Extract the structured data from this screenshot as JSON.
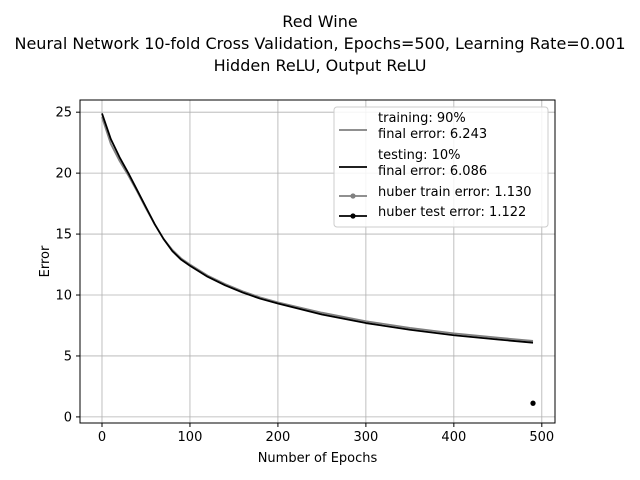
{
  "chart_data": {
    "type": "line",
    "title_lines": [
      "Red Wine",
      "Neural Network 10-fold Cross Validation, Epochs=500, Learning Rate=0.001",
      "Hidden ReLU, Output ReLU"
    ],
    "xlabel": "Number of Epochs",
    "ylabel": "Error",
    "xlim": [
      -25,
      515
    ],
    "ylim": [
      -0.5,
      26
    ],
    "xticks": [
      0,
      100,
      200,
      300,
      400,
      500
    ],
    "yticks": [
      0,
      5,
      10,
      15,
      20,
      25
    ],
    "grid": true,
    "legend_position": "top-right",
    "series": [
      {
        "name": "training: 90%\nfinal error: 6.243",
        "color": "#808080",
        "x": [
          0,
          10,
          20,
          30,
          40,
          50,
          60,
          70,
          80,
          90,
          100,
          120,
          140,
          160,
          180,
          200,
          250,
          300,
          350,
          400,
          450,
          490
        ],
        "y": [
          24.6,
          22.4,
          21.0,
          19.8,
          18.5,
          17.1,
          15.8,
          14.6,
          13.7,
          13.0,
          12.5,
          11.6,
          10.9,
          10.3,
          9.8,
          9.4,
          8.55,
          7.85,
          7.3,
          6.85,
          6.5,
          6.24
        ]
      },
      {
        "name": "testing: 10%\nfinal error: 6.086",
        "color": "#000000",
        "x": [
          0,
          10,
          20,
          30,
          40,
          50,
          60,
          70,
          80,
          90,
          100,
          120,
          140,
          160,
          180,
          200,
          250,
          300,
          350,
          400,
          450,
          490
        ],
        "y": [
          24.9,
          22.8,
          21.3,
          20.0,
          18.6,
          17.2,
          15.8,
          14.6,
          13.6,
          12.9,
          12.4,
          11.5,
          10.8,
          10.2,
          9.7,
          9.3,
          8.4,
          7.7,
          7.15,
          6.7,
          6.35,
          6.09
        ]
      },
      {
        "name": "huber train error: 1.130",
        "color": "#808080",
        "marker": "dot",
        "x": [
          490
        ],
        "y": [
          1.13
        ]
      },
      {
        "name": "huber test error: 1.122",
        "color": "#000000",
        "marker": "dot",
        "x": [
          490
        ],
        "y": [
          1.122
        ]
      }
    ]
  }
}
